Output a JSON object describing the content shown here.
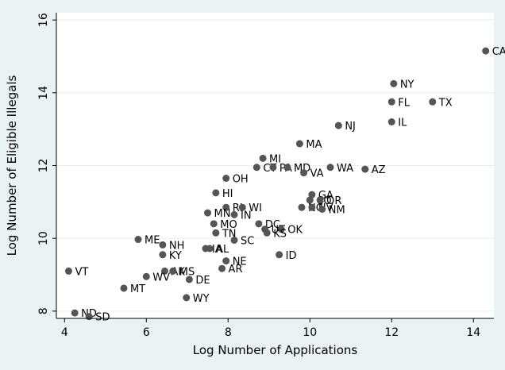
{
  "chart_data": {
    "type": "scatter",
    "title": "",
    "xlabel": "Log Number of Applications",
    "ylabel": "Log Number of Eligible Illegals",
    "xlim": [
      3.8,
      14.5
    ],
    "ylim": [
      7.8,
      16.2
    ],
    "xticks": [
      4,
      6,
      8,
      10,
      12,
      14
    ],
    "yticks": [
      8,
      10,
      12,
      14,
      16
    ],
    "grid": true,
    "colors": {
      "marker": "#555555",
      "background": "#eaf2f3",
      "plot_bg": "#ffffff",
      "grid": "#e8eef0"
    },
    "points": [
      {
        "label": "CA",
        "x": 14.3,
        "y": 15.15
      },
      {
        "label": "NY",
        "x": 12.05,
        "y": 14.25
      },
      {
        "label": "FL",
        "x": 12.0,
        "y": 13.75
      },
      {
        "label": "TX",
        "x": 13.0,
        "y": 13.75
      },
      {
        "label": "IL",
        "x": 12.0,
        "y": 13.2
      },
      {
        "label": "NJ",
        "x": 10.7,
        "y": 13.1
      },
      {
        "label": "MA",
        "x": 9.75,
        "y": 12.6
      },
      {
        "label": "MI",
        "x": 8.85,
        "y": 12.2
      },
      {
        "label": "CT",
        "x": 8.7,
        "y": 11.95
      },
      {
        "label": "PA",
        "x": 9.1,
        "y": 11.95
      },
      {
        "label": "MD",
        "x": 9.45,
        "y": 11.95
      },
      {
        "label": "VA",
        "x": 9.85,
        "y": 11.8
      },
      {
        "label": "WA",
        "x": 10.5,
        "y": 11.95
      },
      {
        "label": "AZ",
        "x": 11.35,
        "y": 11.9
      },
      {
        "label": "OH",
        "x": 7.95,
        "y": 11.65
      },
      {
        "label": "HI",
        "x": 7.7,
        "y": 11.25
      },
      {
        "label": "GA",
        "x": 10.05,
        "y": 11.2
      },
      {
        "label": "CO",
        "x": 10.0,
        "y": 11.05
      },
      {
        "label": "OR",
        "x": 10.25,
        "y": 11.05
      },
      {
        "label": "NC",
        "x": 9.8,
        "y": 10.85
      },
      {
        "label": "NV",
        "x": 10.05,
        "y": 10.85
      },
      {
        "label": "NM",
        "x": 10.3,
        "y": 10.8
      },
      {
        "label": "RI",
        "x": 7.95,
        "y": 10.85
      },
      {
        "label": "WI",
        "x": 8.35,
        "y": 10.85
      },
      {
        "label": "MN",
        "x": 7.5,
        "y": 10.7
      },
      {
        "label": "IN",
        "x": 8.15,
        "y": 10.65
      },
      {
        "label": "MO",
        "x": 7.65,
        "y": 10.4
      },
      {
        "label": "DC",
        "x": 8.75,
        "y": 10.4
      },
      {
        "label": "UT",
        "x": 8.9,
        "y": 10.25
      },
      {
        "label": "OK",
        "x": 9.3,
        "y": 10.25
      },
      {
        "label": "KS",
        "x": 8.95,
        "y": 10.15
      },
      {
        "label": "TN",
        "x": 7.7,
        "y": 10.15
      },
      {
        "label": "SC",
        "x": 8.15,
        "y": 9.95
      },
      {
        "label": "ME",
        "x": 5.8,
        "y": 9.97
      },
      {
        "label": "NH",
        "x": 6.4,
        "y": 9.82
      },
      {
        "label": "IA",
        "x": 7.45,
        "y": 9.72
      },
      {
        "label": "AL",
        "x": 7.55,
        "y": 9.72
      },
      {
        "label": "ID",
        "x": 9.25,
        "y": 9.55
      },
      {
        "label": "KY",
        "x": 6.4,
        "y": 9.55
      },
      {
        "label": "NE",
        "x": 7.95,
        "y": 9.38
      },
      {
        "label": "AR",
        "x": 7.85,
        "y": 9.17
      },
      {
        "label": "VT",
        "x": 4.1,
        "y": 9.1
      },
      {
        "label": "AK",
        "x": 6.45,
        "y": 9.1
      },
      {
        "label": "MS",
        "x": 6.65,
        "y": 9.1
      },
      {
        "label": "WV",
        "x": 6.0,
        "y": 8.95
      },
      {
        "label": "DE",
        "x": 7.05,
        "y": 8.87
      },
      {
        "label": "MT",
        "x": 5.45,
        "y": 8.63
      },
      {
        "label": "WY",
        "x": 6.98,
        "y": 8.37
      },
      {
        "label": "ND",
        "x": 4.25,
        "y": 7.95
      },
      {
        "label": "SD",
        "x": 4.6,
        "y": 7.85
      }
    ]
  }
}
